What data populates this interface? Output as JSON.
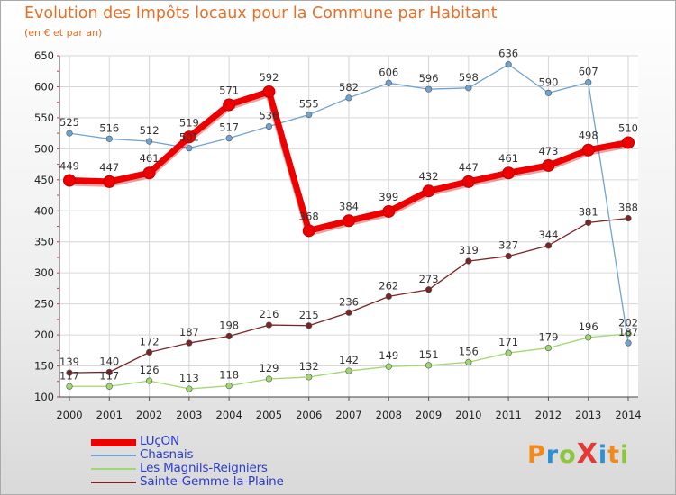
{
  "header": {
    "title": "Evolution des Impôts locaux pour la Commune par Habitant",
    "subtitle": "(en € et par an)"
  },
  "brand": {
    "text": "ProXiti",
    "letters": [
      {
        "char": "P",
        "color": "#f08a1c"
      },
      {
        "char": "r",
        "color": "#2d8fd6"
      },
      {
        "char": "o",
        "color": "#8cc63f"
      },
      {
        "char": "X",
        "color": "#e53935"
      },
      {
        "char": "i",
        "color": "#2d8fd6"
      },
      {
        "char": "t",
        "color": "#f08a1c"
      },
      {
        "char": "i",
        "color": "#8cc63f"
      }
    ]
  },
  "chart_data": {
    "type": "line",
    "title": "Evolution des Impôts locaux pour la Commune par Habitant",
    "subtitle": "(en € et par an)",
    "x": [
      "2000",
      "2001",
      "2002",
      "2003",
      "2004",
      "2005",
      "2006",
      "2007",
      "2008",
      "2009",
      "2010",
      "2011",
      "2012",
      "2013",
      "2014"
    ],
    "ylim": [
      100,
      650
    ],
    "yticks": [
      100,
      150,
      200,
      250,
      300,
      350,
      400,
      450,
      500,
      550,
      600,
      650
    ],
    "grid": true,
    "legend_position": "bottom-left",
    "series": [
      {
        "name": "LUçON",
        "color": "#ee0000",
        "style": "thick",
        "values": [
          449,
          447,
          461,
          519,
          571,
          592,
          368,
          384,
          399,
          432,
          447,
          461,
          473,
          498,
          510
        ]
      },
      {
        "name": "Chasnais",
        "color": "#6fa3d1",
        "style": "thin",
        "values": [
          525,
          516,
          512,
          501,
          517,
          536,
          555,
          582,
          606,
          596,
          598,
          636,
          590,
          607,
          187
        ]
      },
      {
        "name": "Les Magnils-Reigniers",
        "color": "#9ed870",
        "style": "thin",
        "values": [
          117,
          117,
          126,
          113,
          118,
          129,
          132,
          142,
          149,
          151,
          156,
          171,
          179,
          196,
          202
        ]
      },
      {
        "name": "Sainte-Gemme-la-Plaine",
        "color": "#7a2525",
        "style": "thin",
        "values": [
          139,
          140,
          172,
          187,
          198,
          216,
          215,
          236,
          262,
          273,
          319,
          327,
          344,
          381,
          388
        ]
      }
    ],
    "labels": [
      [
        "449",
        "447",
        "461",
        "519",
        "571",
        "592",
        "368",
        "384",
        "399",
        "432",
        "447",
        "461",
        "473",
        "498",
        "510"
      ],
      [
        "525",
        "516",
        "512",
        "501",
        "517",
        "536",
        "555",
        "582",
        "606",
        "596",
        "598",
        "636",
        "590",
        "607",
        "187"
      ],
      [
        "117",
        "117",
        "126",
        "113",
        "118",
        "129",
        "132",
        "142",
        "149",
        "151",
        "156",
        "171",
        "179",
        "196",
        "202"
      ],
      [
        "139",
        "140",
        "172",
        "187",
        "198",
        "216",
        "215",
        "236",
        "262",
        "273",
        "319",
        "327",
        "344",
        "381",
        "388"
      ]
    ]
  }
}
